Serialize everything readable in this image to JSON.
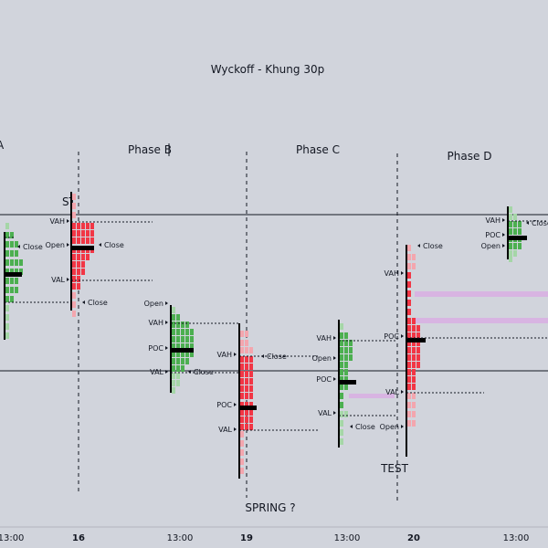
{
  "chart": {
    "title": "Wyckoff - Khung 30p",
    "phases": [
      "Phase B",
      "Phase C",
      "Phase D"
    ],
    "annotations": {
      "st": "ST",
      "spring": "SPRING ?",
      "test": "TEST",
      "edge_glyph": "A"
    },
    "xaxis": {
      "ticks": [
        "13:00",
        "16",
        "13:00",
        "19",
        "13:00",
        "20",
        "13:00"
      ],
      "bold_ticks": [
        "16",
        "19",
        "20"
      ]
    },
    "colors": {
      "background": "#d1d4dc",
      "up_profile": "#4caf50",
      "up_profile_light": "#a5d6a7",
      "down_profile": "#f23645",
      "down_profile_light": "#f3a6ae",
      "poc": "#000000",
      "level_band": "#d8b4e2"
    },
    "profiles": [
      {
        "labels": [
          "Open",
          "Close"
        ],
        "value_labels": []
      },
      {
        "labels": [
          "VAH",
          "Open",
          "Close",
          "VAL",
          "Close"
        ],
        "value_labels": []
      },
      {
        "labels": [
          "Open",
          "VAH",
          "POC",
          "VAL",
          "Open",
          "Close"
        ],
        "value_labels": []
      },
      {
        "labels": [
          "VAH",
          "Close",
          "POC",
          "VAL"
        ],
        "value_labels": []
      },
      {
        "labels": [
          "VAH",
          "Open",
          "POC",
          "VAL",
          "Close"
        ],
        "value_labels": []
      },
      {
        "labels": [
          "Close",
          "VAH",
          "POC",
          "VAL",
          "Open"
        ],
        "value_labels": []
      },
      {
        "labels": [
          "VAH",
          "Close",
          "POC",
          "Open"
        ],
        "value_labels": []
      }
    ]
  }
}
